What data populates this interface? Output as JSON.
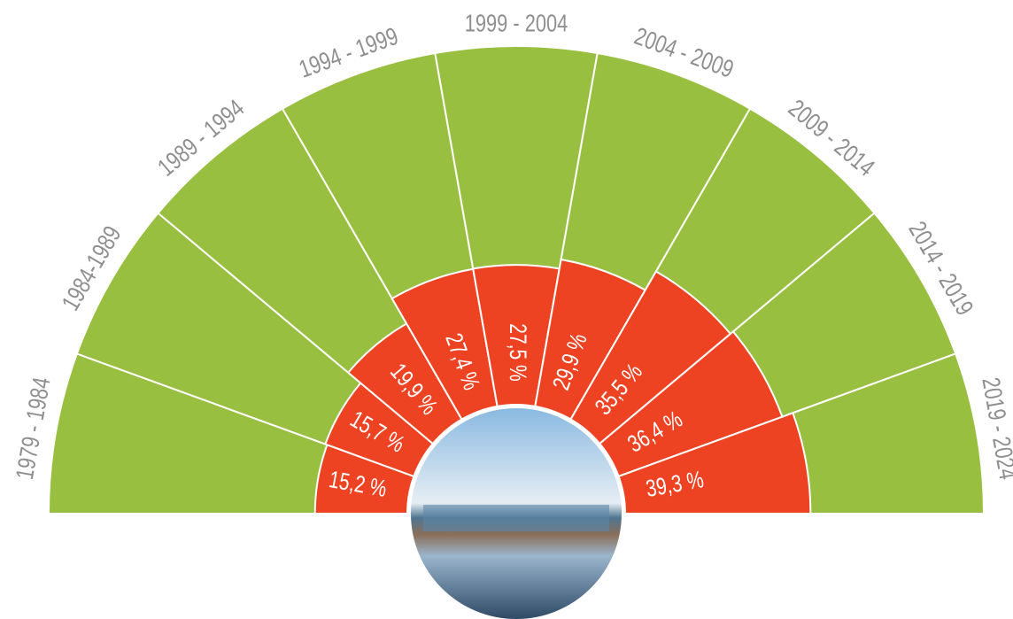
{
  "chart_data": {
    "type": "radial_bar",
    "categories": [
      "1979 - 1984",
      "1984-1989",
      "1989 - 1994",
      "1994 - 1999",
      "1999 - 2004",
      "2004 - 2009",
      "2009 - 2014",
      "2014 - 2019",
      "2019 - 2024"
    ],
    "values": [
      15.2,
      15.7,
      19.9,
      27.4,
      27.5,
      29.9,
      35.5,
      36.4,
      39.3
    ],
    "value_labels": [
      "15,2 %",
      "15,7 %",
      "19,9 %",
      "27,4 %",
      "27,5 %",
      "29,9 %",
      "35,5 %",
      "36,4 %",
      "39,3 %"
    ],
    "color": "#ee4323",
    "background_color": "#98bf3f"
  }
}
